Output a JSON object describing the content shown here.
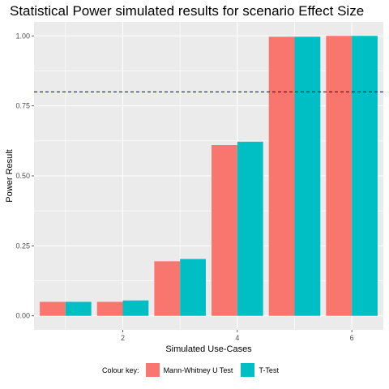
{
  "chart_data": {
    "type": "bar",
    "title": "Statistical Power simulated results for scenario Effect Size",
    "xlabel": "Simulated Use-Cases",
    "ylabel": "Power Result",
    "x": [
      1,
      2,
      3,
      4,
      5,
      6
    ],
    "x_ticks": [
      "2",
      "4",
      "6"
    ],
    "y_ticks": [
      "0.00",
      "0.25",
      "0.50",
      "0.75",
      "1.00"
    ],
    "ylim": [
      -0.05,
      1.05
    ],
    "xlim": [
      0.45,
      6.55
    ],
    "reference_line": {
      "y": 0.8,
      "style": "dashed",
      "color": "#00008B"
    },
    "series": [
      {
        "name": "Mann-Whitney U Test",
        "color": "#F8766D",
        "values": [
          0.05,
          0.05,
          0.195,
          0.61,
          0.997,
          1.0
        ]
      },
      {
        "name": "T-Test",
        "color": "#00BFC4",
        "values": [
          0.05,
          0.055,
          0.203,
          0.622,
          0.997,
          1.0
        ]
      }
    ],
    "grid": true,
    "legend": {
      "title": "Colour key:",
      "position": "bottom"
    },
    "panel_background": "#EBEBEB",
    "grid_color": "#FFFFFF"
  }
}
